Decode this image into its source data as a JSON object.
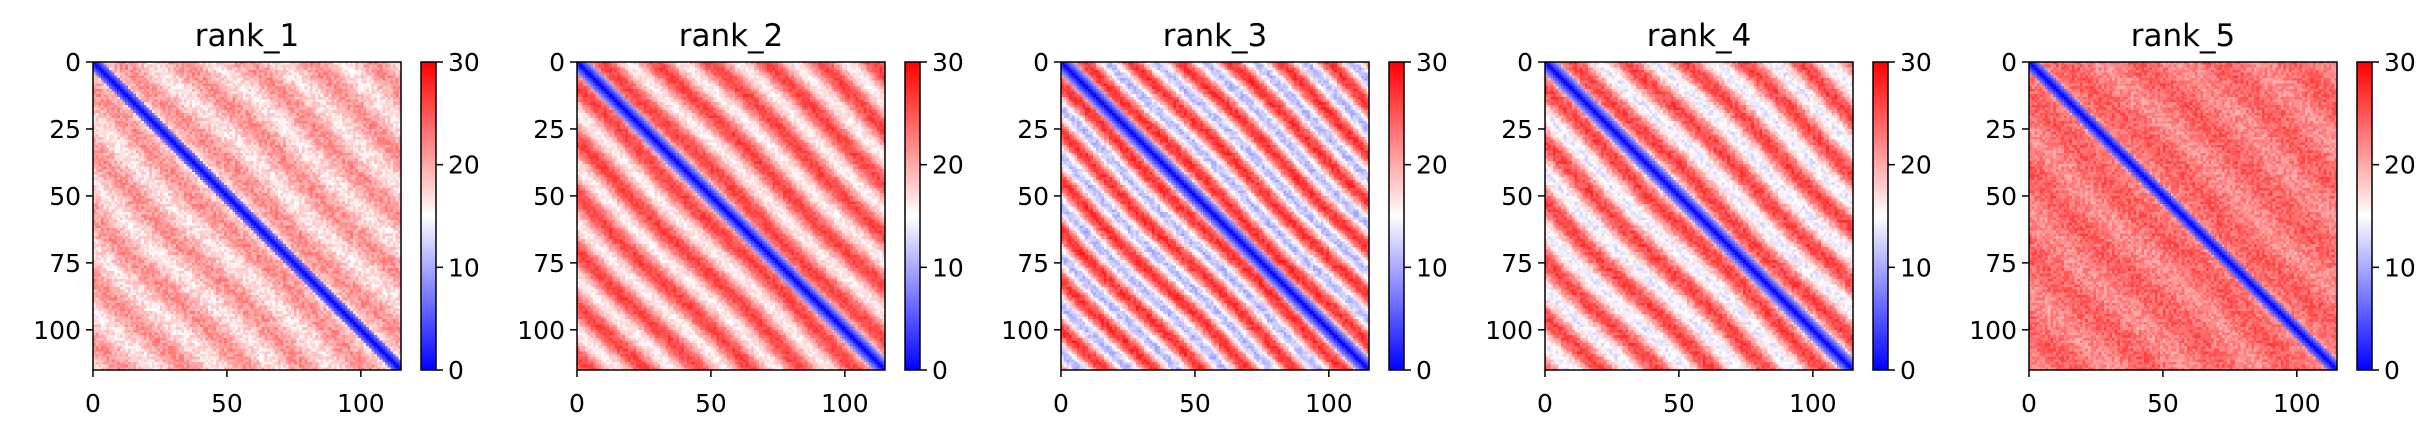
{
  "chart_data": [
    {
      "type": "heatmap",
      "title": "rank_1",
      "xlabel": "",
      "ylabel": "",
      "xlim": [
        0,
        115
      ],
      "ylim": [
        115,
        0
      ],
      "xticks": [
        0,
        50,
        100
      ],
      "yticks": [
        0,
        25,
        50,
        75,
        100
      ],
      "matrix_size": 115,
      "value_range": [
        0,
        30
      ],
      "colormap": "bwr",
      "colors": [
        "#0000ff",
        "#ffffff",
        "#ff0000"
      ],
      "colorbar": {
        "ticks": [
          0,
          10,
          20,
          30
        ]
      },
      "pattern": {
        "period": 23,
        "base": 19,
        "amp": 2.5,
        "noise": 2.2,
        "band_width": 4
      }
    },
    {
      "type": "heatmap",
      "title": "rank_2",
      "xlabel": "",
      "ylabel": "",
      "xlim": [
        0,
        115
      ],
      "ylim": [
        115,
        0
      ],
      "xticks": [
        0,
        50,
        100
      ],
      "yticks": [
        0,
        25,
        50,
        75,
        100
      ],
      "matrix_size": 115,
      "value_range": [
        0,
        30
      ],
      "colormap": "bwr",
      "colors": [
        "#0000ff",
        "#ffffff",
        "#ff0000"
      ],
      "colorbar": {
        "ticks": [
          0,
          10,
          20,
          30
        ]
      },
      "pattern": {
        "period": 20,
        "base": 21,
        "amp": 5,
        "noise": 1.6,
        "band_width": 5
      }
    },
    {
      "type": "heatmap",
      "title": "rank_3",
      "xlabel": "",
      "ylabel": "",
      "xlim": [
        0,
        115
      ],
      "ylim": [
        115,
        0
      ],
      "xticks": [
        0,
        50,
        100
      ],
      "yticks": [
        0,
        25,
        50,
        75,
        100
      ],
      "matrix_size": 115,
      "value_range": [
        0,
        30
      ],
      "colormap": "bwr",
      "colors": [
        "#0000ff",
        "#ffffff",
        "#ff0000"
      ],
      "colorbar": {
        "ticks": [
          0,
          10,
          20,
          30
        ]
      },
      "pattern": {
        "period": 18,
        "base": 19,
        "amp": 8,
        "noise": 1.8,
        "band_width": 5
      }
    },
    {
      "type": "heatmap",
      "title": "rank_4",
      "xlabel": "",
      "ylabel": "",
      "xlim": [
        0,
        115
      ],
      "ylim": [
        115,
        0
      ],
      "xticks": [
        0,
        50,
        100
      ],
      "yticks": [
        0,
        25,
        50,
        75,
        100
      ],
      "matrix_size": 115,
      "value_range": [
        0,
        30
      ],
      "colormap": "bwr",
      "colors": [
        "#0000ff",
        "#ffffff",
        "#ff0000"
      ],
      "colorbar": {
        "ticks": [
          0,
          10,
          20,
          30
        ]
      },
      "pattern": {
        "period": 21,
        "base": 20,
        "amp": 6,
        "noise": 2.0,
        "band_width": 5
      }
    },
    {
      "type": "heatmap",
      "title": "rank_5",
      "xlabel": "",
      "ylabel": "",
      "xlim": [
        0,
        115
      ],
      "ylim": [
        115,
        0
      ],
      "xticks": [
        0,
        50,
        100
      ],
      "yticks": [
        0,
        25,
        50,
        75,
        100
      ],
      "matrix_size": 115,
      "value_range": [
        0,
        30
      ],
      "colormap": "bwr",
      "colors": [
        "#0000ff",
        "#ffffff",
        "#ff0000"
      ],
      "colorbar": {
        "ticks": [
          0,
          10,
          20,
          30
        ]
      },
      "pattern": {
        "period": 28,
        "base": 23,
        "amp": 1.5,
        "noise": 2.3,
        "band_width": 4
      }
    }
  ]
}
